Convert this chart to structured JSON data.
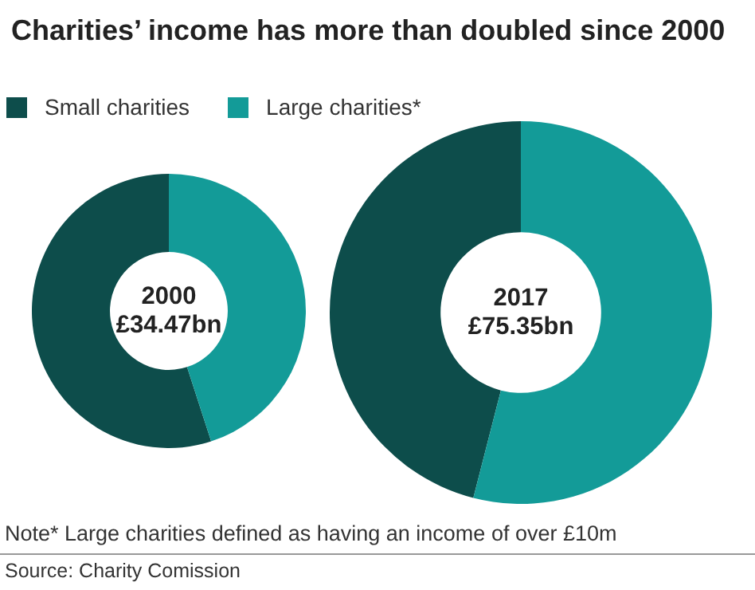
{
  "chart_data": {
    "type": "donut",
    "title": "Charities’ income has more than doubled since 2000",
    "categories": [
      "Small charities",
      "Large charities*"
    ],
    "colors": [
      "#0d4d4b",
      "#139b98"
    ],
    "legend": "top",
    "series": [
      {
        "name": "2000",
        "values": [
          55,
          45
        ]
      },
      {
        "name": "2017",
        "values": [
          46,
          54
        ]
      }
    ],
    "annotations": [
      "£34.47bn",
      "£75.35bn",
      "Note* Large charities defined as having an income of over £10m",
      "Source: Charity Comission"
    ]
  }
}
